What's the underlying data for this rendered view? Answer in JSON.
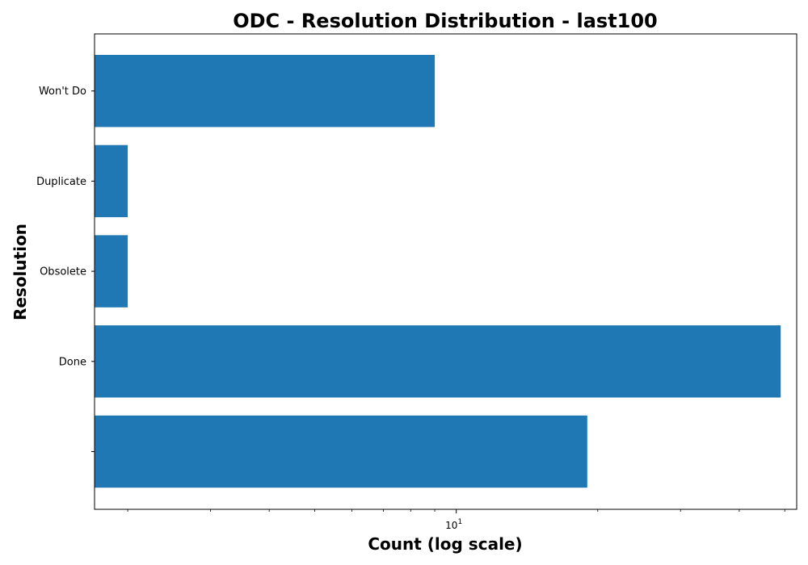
{
  "chart_data": {
    "type": "bar",
    "orientation": "horizontal",
    "title": "ODC - Resolution Distribution - last100",
    "xlabel": "Count (log scale)",
    "ylabel": "Resolution",
    "x_scale": "log",
    "xlim": [
      1.7,
      53
    ],
    "x_major_tick": {
      "value": 10,
      "label": "10",
      "exponent": "1"
    },
    "categories": [
      "",
      "Done",
      "Obsolete",
      "Duplicate",
      "Won't Do"
    ],
    "values": [
      19,
      49,
      2,
      2,
      9
    ],
    "bar_color": "#1f77b4",
    "grid": false,
    "legend": "none"
  }
}
